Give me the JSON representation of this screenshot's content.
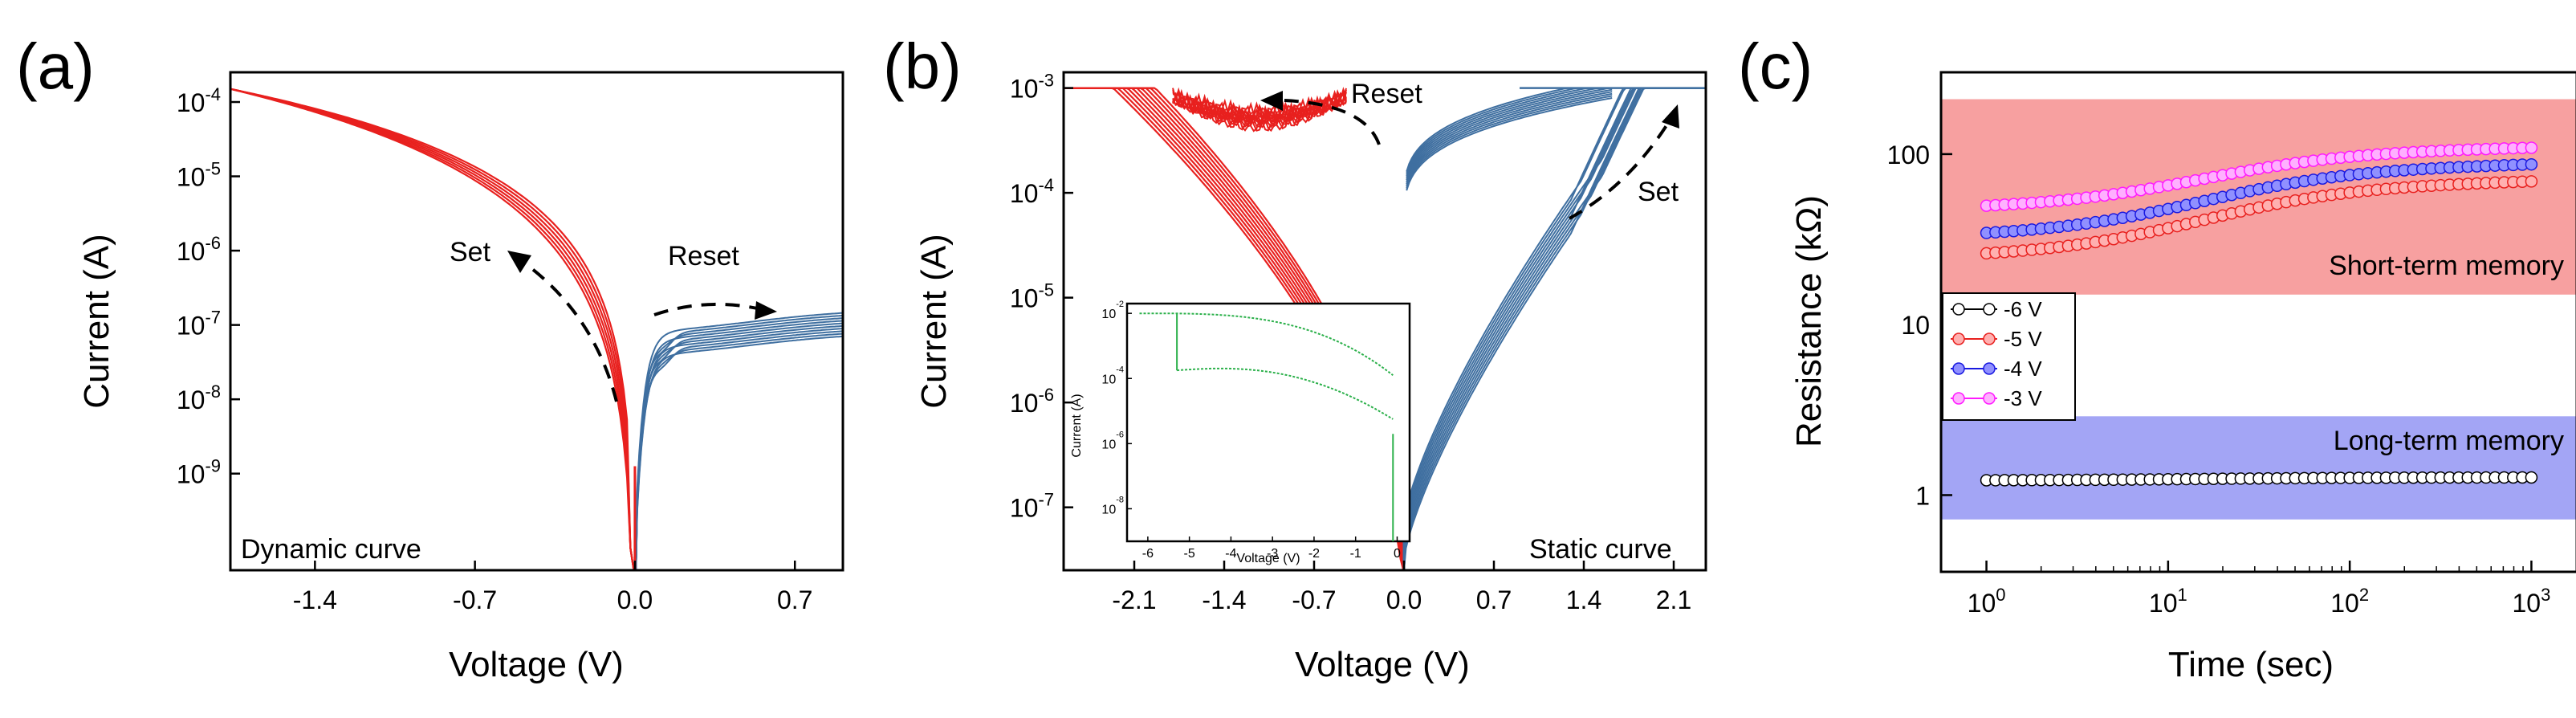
{
  "chart_data": [
    {
      "panel": "(a)",
      "type": "line",
      "xlabel": "Voltage (V)",
      "ylabel": "Current (A)",
      "xlim": [
        -1.77,
        0.91
      ],
      "ylim_log10": [
        -10.3,
        -3.6
      ],
      "xticks": [
        -1.4,
        -0.7,
        0.0,
        0.7
      ],
      "xtick_labels": [
        "-1.4",
        "-0.7",
        "0.0",
        "0.7"
      ],
      "yticks_exp": [
        -4,
        -5,
        -6,
        -7,
        -8,
        -9
      ],
      "ytick_labels": [
        "10-4",
        "10-5",
        "10-6",
        "10-7",
        "10-8",
        "10-9"
      ],
      "inside_label": "Dynamic curve",
      "annotations": [
        {
          "text": "Set",
          "direction": "upper-left along negative branch"
        },
        {
          "text": "Reset",
          "direction": "rightward along positive branch"
        }
      ],
      "series": [
        {
          "name": "negative sweep",
          "color": "#e8201e",
          "x_from": -1.77,
          "x_to": 0.0,
          "current_at_xmin": 0.00015,
          "cycles": 6
        },
        {
          "name": "positive sweep",
          "color": "#3f6fa0",
          "x_from": 0.0,
          "x_to": 0.91,
          "current_at_xmax": 1.6e-07,
          "cycles": 10
        }
      ]
    },
    {
      "panel": "(b)",
      "type": "line",
      "xlabel": "Voltage (V)",
      "ylabel": "Current (A)",
      "xlim": [
        -2.65,
        2.35
      ],
      "ylim_log10": [
        -7.6,
        -2.85
      ],
      "xticks": [
        -2.1,
        -1.4,
        -0.7,
        0.0,
        0.7,
        1.4,
        2.1
      ],
      "xtick_labels": [
        "-2.1",
        "-1.4",
        "-0.7",
        "0.0",
        "0.7",
        "1.4",
        "2.1"
      ],
      "yticks_exp": [
        -3,
        -4,
        -5,
        -6,
        -7
      ],
      "ytick_labels": [
        "10-3",
        "10-4",
        "10-5",
        "10-6",
        "10-7"
      ],
      "inside_label": "Static curve",
      "compliance_current": 0.001,
      "annotations": [
        {
          "text": "Reset",
          "direction": "leftward at compliance"
        },
        {
          "text": "Set",
          "direction": "upper-right along positive branch"
        }
      ],
      "series": [
        {
          "name": "negative sweep",
          "color": "#e8201e",
          "x_from": -2.65,
          "x_to": 0.0,
          "cycles": 10
        },
        {
          "name": "positive sweep",
          "color": "#3f6fa0",
          "x_from": 0.0,
          "x_to": 2.35,
          "cycles": 10
        }
      ],
      "inset": {
        "type": "line",
        "xlabel": "Voltage (V)",
        "ylabel": "Current (A)",
        "xlim": [
          -6.5,
          0.3
        ],
        "ylim_log10": [
          -9,
          -1.7
        ],
        "xticks": [
          -6,
          -5,
          -4,
          -3,
          -2,
          -1,
          0
        ],
        "xtick_labels": [
          "-6",
          "-5",
          "-4",
          "-3",
          "-2",
          "-1",
          "0"
        ],
        "yticks_exp": [
          -2,
          -4,
          -6,
          -8
        ],
        "ytick_labels": [
          "10-2",
          "10-4",
          "10-6",
          "10-8"
        ],
        "color": "#2bb04a"
      }
    },
    {
      "panel": "(c)",
      "type": "scatter",
      "xlabel": "Time (sec)",
      "ylabel": "Resistance (kΩ)",
      "x_scale": "log",
      "y_scale": "log",
      "xlim_log10": [
        -0.25,
        3.25
      ],
      "ylim_log10": [
        -0.45,
        2.48
      ],
      "xticks_exp": [
        0,
        1,
        2,
        3
      ],
      "xtick_labels": [
        "10",
        "10",
        "10",
        "10"
      ],
      "xtick_sup": [
        "0",
        "1",
        "2",
        "3"
      ],
      "yticks": [
        1,
        10,
        100
      ],
      "ytick_labels": [
        "1",
        "10",
        "100"
      ],
      "regions": [
        {
          "label": "Short-term memory",
          "color": "#f7a0a0",
          "y_from": 15,
          "y_to": 210
        },
        {
          "label": "Long-term memory",
          "color": "#a3a5f5",
          "y_from": 0.72,
          "y_to": 2.9
        }
      ],
      "legend": [
        "-6 V",
        "-5 V",
        "-4 V",
        "-3 V"
      ],
      "legend_position": "left-middle",
      "series": [
        {
          "name": "-6 V",
          "color": "#000000",
          "fill": "#ffffff",
          "start": 1.22,
          "end": 1.27
        },
        {
          "name": "-5 V",
          "color": "#e8201e",
          "fill": "#ffb0b0",
          "start": 25,
          "end": 70
        },
        {
          "name": "-4 V",
          "color": "#1a1ae0",
          "fill": "#9090ff",
          "start": 33,
          "end": 88
        },
        {
          "name": "-3 V",
          "color": "#ff1aff",
          "fill": "#ffb0ff",
          "start": 48,
          "end": 110
        }
      ]
    }
  ]
}
